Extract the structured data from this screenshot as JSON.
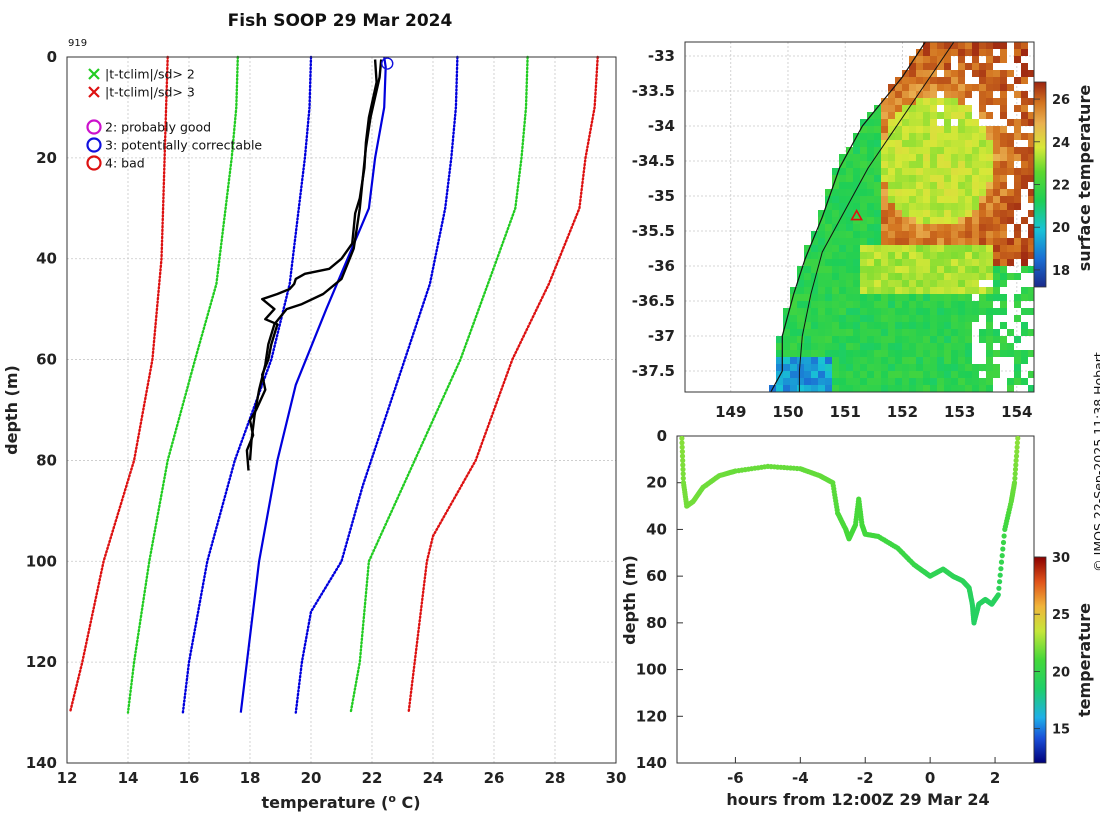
{
  "figure": {
    "title": "Fish SOOP 29 Mar 2024",
    "cruise_id": "919",
    "copyright": "© IMOS 22-Sep-2025 11:38 Hobart"
  },
  "chart_data": [
    {
      "type": "line",
      "name": "profile",
      "xlabel": "temperature (",
      "xlabel_sup": "o",
      "xlabel_end": " C)",
      "ylabel": "depth (m)",
      "xlim": [
        12,
        30
      ],
      "ylim": [
        0,
        140
      ],
      "xticks": [
        12,
        14,
        16,
        18,
        20,
        22,
        24,
        26,
        28,
        30
      ],
      "yticks": [
        0,
        20,
        40,
        60,
        80,
        100,
        120,
        140
      ],
      "legend": [
        {
          "marker": "x",
          "color": "#22cc22",
          "label": "|t-tclim|/sd> 2"
        },
        {
          "marker": "x",
          "color": "#dd1111",
          "label": "|t-tclim|/sd> 3"
        },
        {
          "marker": "o",
          "color": "#cc11cc",
          "label": "2: probably good"
        },
        {
          "marker": "o",
          "color": "#1111dd",
          "label": "3: potentially correctable"
        },
        {
          "marker": "o",
          "color": "#dd1111",
          "label": "4: bad"
        }
      ],
      "flag_marker": {
        "label": "3: potentially correctable",
        "temperature": 22.5,
        "depth": 0.5,
        "color": "#1111dd"
      },
      "series": [
        {
          "name": "climatology mean",
          "color": "#0000dd",
          "style": "solid",
          "points": [
            [
              22.4,
              0
            ],
            [
              22.45,
              2
            ],
            [
              22.4,
              10
            ],
            [
              22.1,
              20
            ],
            [
              21.9,
              30
            ],
            [
              21.2,
              40
            ],
            [
              20.5,
              50
            ],
            [
              19.5,
              65
            ],
            [
              18.9,
              80
            ],
            [
              18.3,
              100
            ],
            [
              17.9,
              120
            ],
            [
              17.7,
              130
            ]
          ]
        },
        {
          "name": "clim -1 sd",
          "color": "#0000dd",
          "style": "dotted",
          "points": [
            [
              20.0,
              0
            ],
            [
              19.95,
              10
            ],
            [
              19.8,
              20
            ],
            [
              19.6,
              30
            ],
            [
              19.3,
              45
            ],
            [
              18.7,
              60
            ],
            [
              17.5,
              80
            ],
            [
              16.6,
              100
            ],
            [
              16.0,
              120
            ],
            [
              15.8,
              130
            ]
          ]
        },
        {
          "name": "clim +1 sd",
          "color": "#0000dd",
          "style": "dotted",
          "points": [
            [
              24.8,
              0
            ],
            [
              24.75,
              10
            ],
            [
              24.6,
              20
            ],
            [
              24.4,
              30
            ],
            [
              23.9,
              45
            ],
            [
              22.8,
              65
            ],
            [
              21.7,
              85
            ],
            [
              21.0,
              100
            ],
            [
              20.0,
              110
            ],
            [
              19.7,
              120
            ],
            [
              19.5,
              130
            ]
          ]
        },
        {
          "name": "clim -2 sd",
          "color": "#22cc22",
          "style": "dotted",
          "points": [
            [
              17.6,
              0
            ],
            [
              17.55,
              10
            ],
            [
              17.4,
              20
            ],
            [
              17.2,
              30
            ],
            [
              16.9,
              45
            ],
            [
              16.2,
              60
            ],
            [
              15.3,
              80
            ],
            [
              14.7,
              100
            ],
            [
              14.2,
              120
            ],
            [
              14.0,
              130
            ]
          ]
        },
        {
          "name": "clim +2 sd",
          "color": "#22cc22",
          "style": "dotted",
          "points": [
            [
              27.1,
              0
            ],
            [
              27.05,
              10
            ],
            [
              26.9,
              20
            ],
            [
              26.7,
              30
            ],
            [
              26.1,
              40
            ],
            [
              24.9,
              60
            ],
            [
              23.4,
              80
            ],
            [
              21.9,
              100
            ],
            [
              21.6,
              120
            ],
            [
              21.3,
              130
            ]
          ]
        },
        {
          "name": "clim -3 sd",
          "color": "#dd1111",
          "style": "dotted",
          "points": [
            [
              15.3,
              0
            ],
            [
              15.25,
              10
            ],
            [
              15.2,
              20
            ],
            [
              15.15,
              30
            ],
            [
              15.1,
              40
            ],
            [
              14.8,
              60
            ],
            [
              14.2,
              80
            ],
            [
              13.2,
              100
            ],
            [
              12.5,
              120
            ],
            [
              12.1,
              130
            ]
          ]
        },
        {
          "name": "clim +3 sd",
          "color": "#dd1111",
          "style": "dotted",
          "points": [
            [
              29.4,
              0
            ],
            [
              29.35,
              5
            ],
            [
              29.3,
              10
            ],
            [
              29.0,
              20
            ],
            [
              28.8,
              30
            ],
            [
              27.8,
              45
            ],
            [
              26.6,
              60
            ],
            [
              25.4,
              80
            ],
            [
              24.0,
              95
            ],
            [
              23.8,
              100
            ],
            [
              23.4,
              120
            ],
            [
              23.2,
              130
            ]
          ]
        },
        {
          "name": "observed profile (down)",
          "color": "#000000",
          "style": "solid",
          "points": [
            [
              22.1,
              0.5
            ],
            [
              22.15,
              5
            ],
            [
              21.9,
              12
            ],
            [
              21.8,
              17
            ],
            [
              21.75,
              22
            ],
            [
              21.6,
              28
            ],
            [
              21.45,
              31
            ],
            [
              21.4,
              34
            ],
            [
              21.35,
              37
            ],
            [
              21.0,
              40
            ],
            [
              20.6,
              42
            ],
            [
              19.8,
              43
            ],
            [
              19.5,
              44
            ],
            [
              19.45,
              45
            ],
            [
              19.3,
              46
            ],
            [
              18.9,
              47
            ],
            [
              18.4,
              48
            ],
            [
              18.8,
              50
            ],
            [
              18.5,
              52
            ],
            [
              18.9,
              53
            ],
            [
              18.7,
              57
            ],
            [
              18.6,
              60
            ],
            [
              18.4,
              63
            ],
            [
              18.5,
              66
            ],
            [
              18.2,
              70
            ],
            [
              18.0,
              72
            ],
            [
              18.1,
              75
            ],
            [
              17.9,
              78
            ],
            [
              17.95,
              82
            ]
          ]
        },
        {
          "name": "observed profile (up)",
          "color": "#000000",
          "style": "solid",
          "points": [
            [
              22.3,
              0.5
            ],
            [
              22.25,
              4
            ],
            [
              21.95,
              12
            ],
            [
              21.8,
              18
            ],
            [
              21.7,
              24
            ],
            [
              21.6,
              30
            ],
            [
              21.5,
              34
            ],
            [
              21.4,
              38
            ],
            [
              21.2,
              41
            ],
            [
              21.0,
              44
            ],
            [
              20.4,
              47
            ],
            [
              19.7,
              49
            ],
            [
              19.2,
              50
            ],
            [
              18.8,
              53
            ],
            [
              18.6,
              57
            ],
            [
              18.5,
              61
            ],
            [
              18.3,
              66
            ],
            [
              18.15,
              71
            ],
            [
              18.05,
              76
            ],
            [
              18.0,
              80
            ]
          ]
        }
      ]
    },
    {
      "type": "heatmap",
      "name": "sst_map",
      "colorbar_label": "surface temperature",
      "colorbar_range": [
        17.2,
        26.8
      ],
      "colorbar_ticks": [
        18,
        20,
        22,
        24,
        26
      ],
      "xlim": [
        148.2,
        154.3
      ],
      "ylim": [
        -37.8,
        -32.8
      ],
      "xticks": [
        149,
        150,
        151,
        152,
        153,
        154
      ],
      "yticks": [
        -33,
        -33.5,
        -34,
        -34.5,
        -35,
        -35.5,
        -36,
        -36.5,
        -37,
        -37.5
      ],
      "coastline": [
        [
          152.4,
          -32.8
        ],
        [
          152.0,
          -33.3
        ],
        [
          151.3,
          -34.0
        ],
        [
          150.9,
          -34.6
        ],
        [
          150.6,
          -35.3
        ],
        [
          150.3,
          -35.9
        ],
        [
          150.1,
          -36.4
        ],
        [
          149.9,
          -37.0
        ],
        [
          149.9,
          -37.5
        ],
        [
          149.7,
          -37.8
        ]
      ],
      "shelf_edge": [
        [
          152.9,
          -32.8
        ],
        [
          152.4,
          -33.4
        ],
        [
          151.9,
          -34.0
        ],
        [
          151.4,
          -34.6
        ],
        [
          151.0,
          -35.2
        ],
        [
          150.6,
          -35.8
        ],
        [
          150.4,
          -36.4
        ],
        [
          150.25,
          -37.0
        ],
        [
          150.2,
          -37.5
        ],
        [
          150.2,
          -37.8
        ]
      ],
      "ship_position": {
        "lon": 151.2,
        "lat": -35.28,
        "color": "#dd1111"
      }
    },
    {
      "type": "scatter",
      "name": "track_depth",
      "xlabel": "hours from 12:00Z 29 Mar 24",
      "ylabel": "depth (m)",
      "colorbar_label": "temperature",
      "colorbar_range": [
        12,
        30
      ],
      "colorbar_ticks": [
        15,
        20,
        25,
        30
      ],
      "xlim": [
        -7.8,
        3.2
      ],
      "ylim": [
        0,
        140
      ],
      "xticks": [
        -6,
        -4,
        -2,
        0,
        2
      ],
      "yticks": [
        0,
        20,
        40,
        60,
        80,
        100,
        120,
        140
      ],
      "points": [
        [
          -7.65,
          1,
          22.3
        ],
        [
          -7.6,
          20,
          22.0
        ],
        [
          -7.5,
          30,
          21.9
        ],
        [
          -7.3,
          28,
          21.9
        ],
        [
          -7.0,
          22,
          21.8
        ],
        [
          -6.5,
          17,
          21.8
        ],
        [
          -6.0,
          15,
          21.7
        ],
        [
          -5.0,
          13,
          21.7
        ],
        [
          -4.0,
          14,
          21.6
        ],
        [
          -3.4,
          17,
          21.6
        ],
        [
          -3.0,
          20,
          21.5
        ],
        [
          -2.85,
          33,
          21.2
        ],
        [
          -2.6,
          40,
          21.1
        ],
        [
          -2.5,
          44,
          21.0
        ],
        [
          -2.3,
          38,
          21.0
        ],
        [
          -2.2,
          27,
          21.1
        ],
        [
          -2.1,
          38,
          21.0
        ],
        [
          -2.0,
          42,
          20.9
        ],
        [
          -1.6,
          43,
          20.8
        ],
        [
          -1.0,
          48,
          20.5
        ],
        [
          -0.5,
          55,
          20.2
        ],
        [
          -0.2,
          58,
          19.9
        ],
        [
          0.0,
          60,
          19.7
        ],
        [
          0.4,
          57,
          19.6
        ],
        [
          0.7,
          60,
          19.5
        ],
        [
          1.0,
          62,
          19.4
        ],
        [
          1.2,
          65,
          19.3
        ],
        [
          1.3,
          72,
          19.0
        ],
        [
          1.35,
          80,
          18.9
        ],
        [
          1.5,
          72,
          19.0
        ],
        [
          1.7,
          70,
          19.1
        ],
        [
          1.9,
          72,
          19.0
        ],
        [
          2.1,
          68,
          19.3
        ],
        [
          2.3,
          40,
          20.5
        ],
        [
          2.5,
          28,
          21.5
        ],
        [
          2.6,
          20,
          21.8
        ],
        [
          2.7,
          1,
          22.4
        ]
      ]
    }
  ]
}
